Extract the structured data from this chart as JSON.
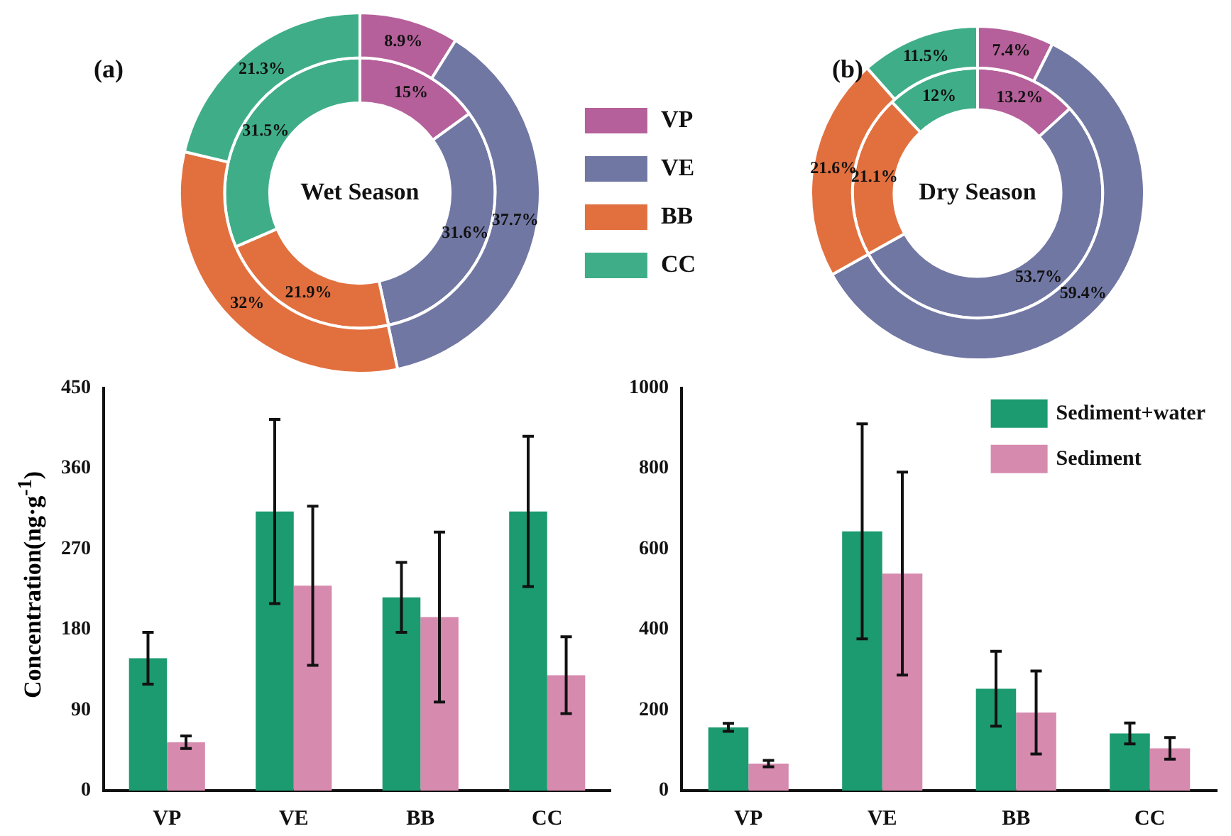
{
  "chart_data": [
    {
      "type": "donut",
      "title": "Wet Season",
      "annotations": [
        "(a)"
      ],
      "categories": [
        "VP",
        "VE",
        "BB",
        "CC"
      ],
      "colors": [
        "#b5609a",
        "#7177a3",
        "#e2703f",
        "#3fae88"
      ],
      "legend": "right",
      "series": [
        {
          "values": [
            8.9,
            37.7,
            32,
            21.3
          ],
          "value_labels": [
            "8.9%",
            "37.7%",
            "32%",
            "21.3%"
          ]
        },
        {
          "values": [
            15,
            31.6,
            21.9,
            31.5
          ],
          "value_labels": [
            "15%",
            "31.6%",
            "21.9%",
            "31.5%"
          ]
        }
      ]
    },
    {
      "type": "donut",
      "title": "Dry Season",
      "annotations": [
        "(b)"
      ],
      "categories": [
        null,
        null,
        null,
        null
      ],
      "colors": [
        "#b5609a",
        "#7177a3",
        "#e2703f",
        "#3fae88"
      ],
      "series": [
        {
          "values": [
            7.4,
            59.4,
            21.6,
            11.5
          ],
          "value_labels": [
            "7.4%",
            "59.4%",
            "21.6%",
            "11.5%"
          ]
        },
        {
          "values": [
            13.2,
            53.7,
            21.1,
            12
          ],
          "value_labels": [
            "13.2%",
            "53.7%",
            "21.1%",
            "12%"
          ]
        }
      ]
    },
    {
      "type": "bar",
      "ylabel": "Concentration(ng·g$^{-1}$)",
      "categories": [
        "VP",
        "VE",
        "BB",
        "CC"
      ],
      "ylim": [
        0,
        450
      ],
      "yticks": [
        0,
        90,
        180,
        270,
        360,
        450
      ],
      "series": [
        {
          "color": "#1c9a70",
          "values": [
            148,
            312,
            216,
            312
          ],
          "errors": [
            29,
            103,
            39,
            84
          ]
        },
        {
          "color": "#d68aae",
          "values": [
            54,
            229,
            194,
            129
          ],
          "errors": [
            7,
            89,
            95,
            43
          ]
        }
      ]
    },
    {
      "type": "bar",
      "categories": [
        "VP",
        "VE",
        "BB",
        "CC"
      ],
      "ylim": [
        0,
        1000
      ],
      "yticks": [
        0,
        200,
        400,
        600,
        800,
        1000
      ],
      "legend": "top right",
      "series": [
        {
          "name": "Sediment+water",
          "color": "#1c9a70",
          "values": [
            157,
            644,
            253,
            142
          ],
          "errors": [
            10,
            267,
            93,
            26
          ]
        },
        {
          "name": "Sediment",
          "color": "#d68aae",
          "values": [
            67,
            539,
            194,
            105
          ],
          "errors": [
            8,
            252,
            103,
            27
          ]
        }
      ]
    }
  ]
}
